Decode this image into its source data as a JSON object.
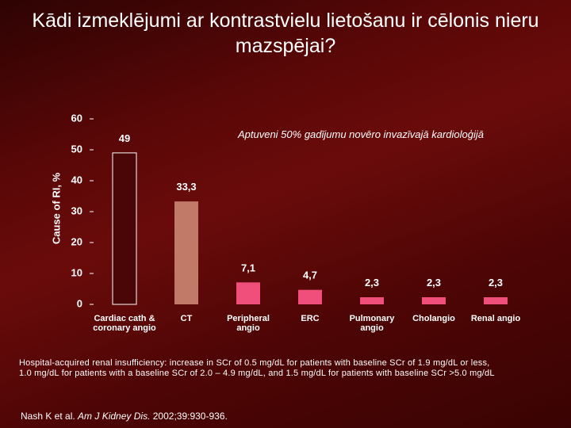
{
  "chart_data": {
    "type": "bar",
    "title": "Kādi izmeklējumi ar kontrastvielu lietošanu ir cēlonis nieru mazspējai?",
    "y_label": "Cause of RI, %",
    "annotation": "Aptuveni 50% gadījumu novēro invazīvajā kardioloģijā",
    "categories": [
      "Cardiac cath & coronary angio",
      "CT",
      "Peripheral angio",
      "ERC",
      "Pulmonary angio",
      "Cholangio",
      "Renal angio"
    ],
    "values": [
      49,
      33.3,
      7.1,
      4.7,
      2.3,
      2.3,
      2.3
    ],
    "value_labels": [
      "49",
      "33,3",
      "7,1",
      "4,7",
      "2,3",
      "2,3",
      "2,3"
    ],
    "colors": [
      "#4a0606",
      "#c27a68",
      "#f04f7c",
      "#f04f7c",
      "#f04f7c",
      "#f04f7c",
      "#f04f7c"
    ],
    "ylim": [
      0,
      60
    ],
    "yticks": [
      0,
      10,
      20,
      30,
      40,
      50,
      60
    ]
  },
  "footnote": {
    "definition": [
      "Hospital-acquired renal insufficiency: increase in SCr of 0.5 mg/dL for patients with baseline SCr of 1.9 mg/dL or less,",
      "1.0 mg/dL for patients with a baseline SCr of 2.0 – 4.9 mg/dL, and 1.5 mg/dL for patients with baseline SCr >5.0 mg/dL"
    ],
    "citation": {
      "authors": "Nash K et al.",
      "journal": "Am J Kidney Dis.",
      "details": "2002;39:930-936."
    }
  }
}
